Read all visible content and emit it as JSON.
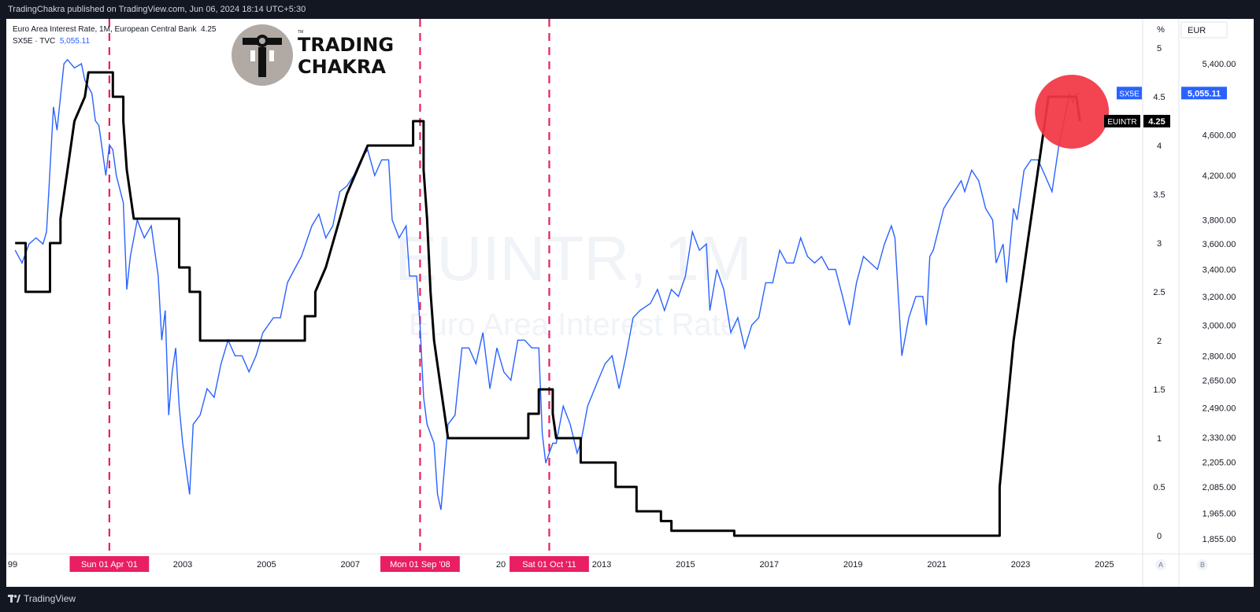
{
  "header": {
    "published_text": "TradingChakra published on TradingView.com, Jun 06, 2024 18:14 UTC+5:30"
  },
  "legend": {
    "line1_label": "Euro Area Interest Rate, 1M, European Central Bank",
    "line1_value": "4.25",
    "line2_label": "SX5E · TVC",
    "line2_value": "5,055.11"
  },
  "logo": {
    "line1": "TRADING",
    "line2": "CHAKRA",
    "tm": "TM"
  },
  "watermark": {
    "symbol": "EUINTR, 1M",
    "name": "Euro Area Interest Rate"
  },
  "axes": {
    "left_unit": "%",
    "right_unit": "EUR",
    "left_ticks": [
      "5",
      "4.5",
      "4",
      "3.5",
      "3",
      "2.5",
      "2",
      "1.5",
      "1",
      "0.5",
      "0"
    ],
    "right_ticks": [
      "5,400.00",
      "4,600.00",
      "4,200.00",
      "3,800.00",
      "3,600.00",
      "3,400.00",
      "3,200.00",
      "3,000.00",
      "2,800.00",
      "2,650.00",
      "2,490.00",
      "2,330.00",
      "2,205.00",
      "2,085.00",
      "1,965.00",
      "1,855.00"
    ],
    "x_ticks": [
      "99",
      "2003",
      "2005",
      "2007",
      "2013",
      "2015",
      "2017",
      "2019",
      "2021",
      "2023",
      "2025"
    ],
    "x_partial": "20",
    "scale_left_btn": "A",
    "scale_right_btn": "B"
  },
  "markers": [
    {
      "label": "Sun 01 Apr '01",
      "date": "2001-04"
    },
    {
      "label": "Mon 01 Sep '08",
      "date": "2008-09"
    },
    {
      "label": "Sat 01 Oct '11",
      "date": "2011-10"
    }
  ],
  "price_labels": {
    "sx5e_tag": "SX5E",
    "sx5e_value": "5,055.11",
    "euintr_tag": "EUINTR",
    "euintr_value": "4.25"
  },
  "colors": {
    "rate_line": "#000000",
    "index_line": "#2962ff",
    "marker": "#e91e63",
    "highlight": "#f23645",
    "background": "#ffffff",
    "frame": "#131722"
  },
  "footer": {
    "brand": "TradingView"
  },
  "chart_data": {
    "type": "line",
    "x_range": [
      "1999-01",
      "2025-06"
    ],
    "series": [
      {
        "name": "EUINTR",
        "axis": "left",
        "unit": "%",
        "points": [
          [
            "1999-01",
            3.0
          ],
          [
            "1999-04",
            3.0
          ],
          [
            "1999-04",
            2.5
          ],
          [
            "1999-11",
            2.5
          ],
          [
            "1999-11",
            3.0
          ],
          [
            "2000-02",
            3.0
          ],
          [
            "2000-02",
            3.25
          ],
          [
            "2000-03",
            3.5
          ],
          [
            "2000-04",
            3.75
          ],
          [
            "2000-06",
            4.25
          ],
          [
            "2000-09",
            4.5
          ],
          [
            "2000-10",
            4.75
          ],
          [
            "2001-05",
            4.75
          ],
          [
            "2001-05",
            4.5
          ],
          [
            "2001-08",
            4.5
          ],
          [
            "2001-08",
            4.25
          ],
          [
            "2001-09",
            3.75
          ],
          [
            "2001-11",
            3.25
          ],
          [
            "2002-12",
            3.25
          ],
          [
            "2002-12",
            2.75
          ],
          [
            "2003-03",
            2.75
          ],
          [
            "2003-03",
            2.5
          ],
          [
            "2003-06",
            2.5
          ],
          [
            "2003-06",
            2.0
          ],
          [
            "2005-12",
            2.0
          ],
          [
            "2005-12",
            2.25
          ],
          [
            "2006-03",
            2.25
          ],
          [
            "2006-03",
            2.5
          ],
          [
            "2006-06",
            2.75
          ],
          [
            "2006-08",
            3.0
          ],
          [
            "2006-10",
            3.25
          ],
          [
            "2006-12",
            3.5
          ],
          [
            "2007-03",
            3.75
          ],
          [
            "2007-06",
            4.0
          ],
          [
            "2008-07",
            4.0
          ],
          [
            "2008-07",
            4.25
          ],
          [
            "2008-10",
            4.25
          ],
          [
            "2008-10",
            3.75
          ],
          [
            "2008-11",
            3.25
          ],
          [
            "2008-12",
            2.5
          ],
          [
            "2009-01",
            2.0
          ],
          [
            "2009-03",
            1.5
          ],
          [
            "2009-04",
            1.25
          ],
          [
            "2009-05",
            1.0
          ],
          [
            "2011-04",
            1.0
          ],
          [
            "2011-04",
            1.25
          ],
          [
            "2011-07",
            1.25
          ],
          [
            "2011-07",
            1.5
          ],
          [
            "2011-11",
            1.5
          ],
          [
            "2011-11",
            1.25
          ],
          [
            "2011-12",
            1.0
          ],
          [
            "2012-07",
            1.0
          ],
          [
            "2012-07",
            0.75
          ],
          [
            "2013-05",
            0.75
          ],
          [
            "2013-05",
            0.5
          ],
          [
            "2013-11",
            0.5
          ],
          [
            "2013-11",
            0.25
          ],
          [
            "2014-06",
            0.25
          ],
          [
            "2014-06",
            0.15
          ],
          [
            "2014-09",
            0.15
          ],
          [
            "2014-09",
            0.05
          ],
          [
            "2016-03",
            0.05
          ],
          [
            "2016-03",
            0.0
          ],
          [
            "2022-07",
            0.0
          ],
          [
            "2022-07",
            0.5
          ],
          [
            "2022-09",
            1.25
          ],
          [
            "2022-11",
            2.0
          ],
          [
            "2023-01",
            2.5
          ],
          [
            "2023-03",
            3.0
          ],
          [
            "2023-05",
            3.5
          ],
          [
            "2023-07",
            4.0
          ],
          [
            "2023-09",
            4.5
          ],
          [
            "2024-05",
            4.5
          ],
          [
            "2024-06",
            4.25
          ]
        ]
      },
      {
        "name": "SX5E",
        "axis": "right",
        "unit": "EUR",
        "points": [
          [
            "1999-01",
            3550
          ],
          [
            "1999-03",
            3450
          ],
          [
            "1999-05",
            3600
          ],
          [
            "1999-07",
            3650
          ],
          [
            "1999-09",
            3600
          ],
          [
            "1999-10",
            3700
          ],
          [
            "1999-12",
            4900
          ],
          [
            "2000-01",
            4650
          ],
          [
            "2000-03",
            5400
          ],
          [
            "2000-04",
            5450
          ],
          [
            "2000-06",
            5350
          ],
          [
            "2000-08",
            5400
          ],
          [
            "2000-09",
            5200
          ],
          [
            "2000-11",
            5050
          ],
          [
            "2000-12",
            4750
          ],
          [
            "2001-01",
            4700
          ],
          [
            "2001-03",
            4200
          ],
          [
            "2001-04",
            4500
          ],
          [
            "2001-05",
            4450
          ],
          [
            "2001-06",
            4200
          ],
          [
            "2001-08",
            3950
          ],
          [
            "2001-09",
            3250
          ],
          [
            "2001-10",
            3500
          ],
          [
            "2001-12",
            3800
          ],
          [
            "2002-02",
            3650
          ],
          [
            "2002-04",
            3750
          ],
          [
            "2002-06",
            3350
          ],
          [
            "2002-07",
            2900
          ],
          [
            "2002-08",
            3100
          ],
          [
            "2002-09",
            2450
          ],
          [
            "2002-10",
            2700
          ],
          [
            "2002-11",
            2850
          ],
          [
            "2002-12",
            2500
          ],
          [
            "2003-01",
            2300
          ],
          [
            "2003-03",
            2050
          ],
          [
            "2003-04",
            2400
          ],
          [
            "2003-06",
            2450
          ],
          [
            "2003-08",
            2600
          ],
          [
            "2003-10",
            2550
          ],
          [
            "2003-12",
            2750
          ],
          [
            "2004-02",
            2900
          ],
          [
            "2004-04",
            2800
          ],
          [
            "2004-06",
            2800
          ],
          [
            "2004-08",
            2700
          ],
          [
            "2004-10",
            2800
          ],
          [
            "2004-12",
            2950
          ],
          [
            "2005-03",
            3050
          ],
          [
            "2005-05",
            3050
          ],
          [
            "2005-07",
            3300
          ],
          [
            "2005-09",
            3400
          ],
          [
            "2005-11",
            3500
          ],
          [
            "2006-02",
            3750
          ],
          [
            "2006-04",
            3850
          ],
          [
            "2006-06",
            3650
          ],
          [
            "2006-08",
            3750
          ],
          [
            "2006-10",
            4050
          ],
          [
            "2006-12",
            4100
          ],
          [
            "2007-02",
            4200
          ],
          [
            "2007-04",
            4350
          ],
          [
            "2007-06",
            4450
          ],
          [
            "2007-08",
            4200
          ],
          [
            "2007-10",
            4350
          ],
          [
            "2007-12",
            4350
          ],
          [
            "2008-01",
            3800
          ],
          [
            "2008-03",
            3650
          ],
          [
            "2008-05",
            3750
          ],
          [
            "2008-06",
            3350
          ],
          [
            "2008-08",
            3350
          ],
          [
            "2008-09",
            3000
          ],
          [
            "2008-10",
            2550
          ],
          [
            "2008-11",
            2400
          ],
          [
            "2009-01",
            2300
          ],
          [
            "2009-02",
            2050
          ],
          [
            "2009-03",
            1980
          ],
          [
            "2009-05",
            2400
          ],
          [
            "2009-07",
            2450
          ],
          [
            "2009-09",
            2850
          ],
          [
            "2009-11",
            2850
          ],
          [
            "2010-01",
            2750
          ],
          [
            "2010-03",
            2950
          ],
          [
            "2010-05",
            2600
          ],
          [
            "2010-07",
            2850
          ],
          [
            "2010-09",
            2700
          ],
          [
            "2010-11",
            2650
          ],
          [
            "2011-01",
            2900
          ],
          [
            "2011-03",
            2900
          ],
          [
            "2011-05",
            2850
          ],
          [
            "2011-07",
            2850
          ],
          [
            "2011-08",
            2350
          ],
          [
            "2011-09",
            2200
          ],
          [
            "2011-11",
            2300
          ],
          [
            "2011-12",
            2300
          ],
          [
            "2012-02",
            2500
          ],
          [
            "2012-04",
            2400
          ],
          [
            "2012-06",
            2250
          ],
          [
            "2012-07",
            2300
          ],
          [
            "2012-09",
            2500
          ],
          [
            "2012-12",
            2650
          ],
          [
            "2013-02",
            2750
          ],
          [
            "2013-04",
            2800
          ],
          [
            "2013-06",
            2600
          ],
          [
            "2013-08",
            2800
          ],
          [
            "2013-10",
            3050
          ],
          [
            "2013-12",
            3100
          ],
          [
            "2014-03",
            3150
          ],
          [
            "2014-05",
            3250
          ],
          [
            "2014-07",
            3100
          ],
          [
            "2014-09",
            3250
          ],
          [
            "2014-11",
            3200
          ],
          [
            "2015-01",
            3350
          ],
          [
            "2015-03",
            3700
          ],
          [
            "2015-05",
            3550
          ],
          [
            "2015-07",
            3600
          ],
          [
            "2015-08",
            3100
          ],
          [
            "2015-10",
            3400
          ],
          [
            "2015-12",
            3250
          ],
          [
            "2016-02",
            2950
          ],
          [
            "2016-04",
            3050
          ],
          [
            "2016-06",
            2850
          ],
          [
            "2016-08",
            3000
          ],
          [
            "2016-10",
            3050
          ],
          [
            "2016-12",
            3300
          ],
          [
            "2017-02",
            3300
          ],
          [
            "2017-04",
            3550
          ],
          [
            "2017-06",
            3450
          ],
          [
            "2017-08",
            3450
          ],
          [
            "2017-10",
            3650
          ],
          [
            "2017-12",
            3500
          ],
          [
            "2018-02",
            3450
          ],
          [
            "2018-04",
            3500
          ],
          [
            "2018-06",
            3400
          ],
          [
            "2018-08",
            3400
          ],
          [
            "2018-10",
            3200
          ],
          [
            "2018-12",
            3000
          ],
          [
            "2019-02",
            3300
          ],
          [
            "2019-04",
            3500
          ],
          [
            "2019-06",
            3450
          ],
          [
            "2019-08",
            3400
          ],
          [
            "2019-10",
            3600
          ],
          [
            "2019-12",
            3750
          ],
          [
            "2020-01",
            3650
          ],
          [
            "2020-03",
            2800
          ],
          [
            "2020-05",
            3050
          ],
          [
            "2020-07",
            3200
          ],
          [
            "2020-09",
            3200
          ],
          [
            "2020-10",
            3000
          ],
          [
            "2020-11",
            3500
          ],
          [
            "2020-12",
            3550
          ],
          [
            "2021-03",
            3900
          ],
          [
            "2021-06",
            4050
          ],
          [
            "2021-08",
            4150
          ],
          [
            "2021-09",
            4050
          ],
          [
            "2021-11",
            4250
          ],
          [
            "2022-01",
            4150
          ],
          [
            "2022-03",
            3900
          ],
          [
            "2022-05",
            3800
          ],
          [
            "2022-06",
            3450
          ],
          [
            "2022-08",
            3600
          ],
          [
            "2022-09",
            3300
          ],
          [
            "2022-11",
            3900
          ],
          [
            "2022-12",
            3800
          ],
          [
            "2023-02",
            4250
          ],
          [
            "2023-04",
            4350
          ],
          [
            "2023-06",
            4350
          ],
          [
            "2023-08",
            4200
          ],
          [
            "2023-10",
            4050
          ],
          [
            "2023-12",
            4500
          ],
          [
            "2024-02",
            4850
          ],
          [
            "2024-03",
            5050
          ],
          [
            "2024-04",
            4950
          ],
          [
            "2024-05",
            5050
          ],
          [
            "2024-06",
            5055.11
          ]
        ]
      }
    ],
    "left_axis": {
      "unit": "%",
      "range": [
        0,
        5
      ]
    },
    "right_axis": {
      "unit": "EUR",
      "scale": "log",
      "range": [
        1855,
        5400
      ]
    },
    "highlight": {
      "date": "2024-01",
      "value_pct": 4.5,
      "shape": "circle"
    }
  }
}
